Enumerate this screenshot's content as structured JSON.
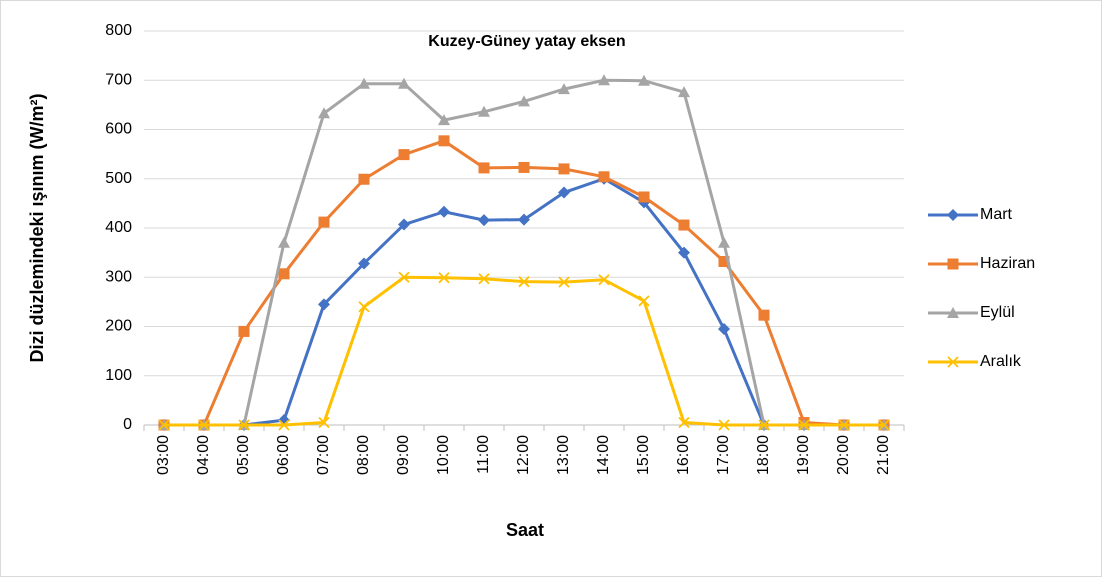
{
  "chart_data": {
    "type": "line",
    "title": "Kuzey-Güney yatay eksen",
    "xlabel": "Saat",
    "ylabel": "Dizi düzlemindeki ışınım (W/m²)",
    "categories": [
      "03:00",
      "04:00",
      "05:00",
      "06:00",
      "07:00",
      "08:00",
      "09:00",
      "10:00",
      "11:00",
      "12:00",
      "13:00",
      "14:00",
      "15:00",
      "16:00",
      "17:00",
      "18:00",
      "19:00",
      "20:00",
      "21:00"
    ],
    "series": [
      {
        "name": "Mart",
        "color": "#4472c4",
        "marker": "diamond",
        "values": [
          0,
          0,
          0,
          10,
          245,
          328,
          407,
          433,
          416,
          417,
          472,
          500,
          452,
          350,
          195,
          0,
          0,
          0,
          0
        ]
      },
      {
        "name": "Haziran",
        "color": "#ed7d31",
        "marker": "square",
        "values": [
          0,
          0,
          190,
          307,
          412,
          499,
          549,
          577,
          522,
          523,
          520,
          504,
          463,
          406,
          332,
          223,
          5,
          0,
          0
        ]
      },
      {
        "name": "Eylül",
        "color": "#a5a5a5",
        "marker": "triangle",
        "values": [
          0,
          0,
          0,
          370,
          633,
          693,
          693,
          619,
          636,
          657,
          682,
          700,
          699,
          676,
          370,
          0,
          0,
          0,
          0
        ]
      },
      {
        "name": "Aralık",
        "color": "#ffc000",
        "marker": "x",
        "values": [
          0,
          0,
          0,
          0,
          5,
          240,
          300,
          299,
          297,
          291,
          290,
          295,
          252,
          5,
          0,
          0,
          0,
          0,
          0
        ]
      }
    ],
    "ylim": [
      0,
      800
    ],
    "yticks": [
      0,
      100,
      200,
      300,
      400,
      500,
      600,
      700,
      800
    ],
    "grid": true,
    "legend": "right"
  }
}
